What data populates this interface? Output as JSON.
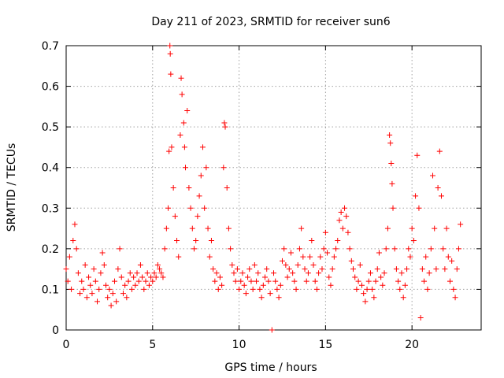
{
  "chart_data": {
    "type": "scatter",
    "title": "Day 211 of 2023, SRMTID for receiver sun6",
    "xlabel": "GPS time / hours",
    "ylabel": "SRMTID / TECUs",
    "xlim": [
      0,
      24
    ],
    "ylim": [
      0,
      0.7
    ],
    "xticks": [
      0,
      5,
      10,
      15,
      20
    ],
    "xtick_labels": [
      "0",
      "5",
      "10",
      "15",
      "20"
    ],
    "yticks": [
      0,
      0.1,
      0.2,
      0.3,
      0.4,
      0.5,
      0.6,
      0.7
    ],
    "ytick_labels": [
      "0",
      "0.1",
      "0.2",
      "0.3",
      "0.4",
      "0.5",
      "0.6",
      "0.7"
    ],
    "grid": true,
    "marker": "+",
    "color": "#ff0000",
    "series": [
      {
        "name": "SRMTID",
        "points": [
          [
            0.0,
            0.15
          ],
          [
            0.1,
            0.12
          ],
          [
            0.2,
            0.18
          ],
          [
            0.3,
            0.1
          ],
          [
            0.4,
            0.22
          ],
          [
            0.5,
            0.26
          ],
          [
            0.6,
            0.2
          ],
          [
            0.7,
            0.14
          ],
          [
            0.8,
            0.09
          ],
          [
            0.9,
            0.12
          ],
          [
            1.0,
            0.1
          ],
          [
            1.1,
            0.16
          ],
          [
            1.2,
            0.08
          ],
          [
            1.3,
            0.13
          ],
          [
            1.4,
            0.11
          ],
          [
            1.5,
            0.09
          ],
          [
            1.6,
            0.15
          ],
          [
            1.7,
            0.12
          ],
          [
            1.8,
            0.07
          ],
          [
            1.9,
            0.1
          ],
          [
            2.0,
            0.14
          ],
          [
            2.1,
            0.19
          ],
          [
            2.2,
            0.16
          ],
          [
            2.3,
            0.11
          ],
          [
            2.4,
            0.08
          ],
          [
            2.5,
            0.1
          ],
          [
            2.6,
            0.06
          ],
          [
            2.7,
            0.09
          ],
          [
            2.8,
            0.12
          ],
          [
            2.9,
            0.07
          ],
          [
            3.0,
            0.15
          ],
          [
            3.1,
            0.2
          ],
          [
            3.2,
            0.13
          ],
          [
            3.3,
            0.09
          ],
          [
            3.4,
            0.11
          ],
          [
            3.5,
            0.08
          ],
          [
            3.6,
            0.12
          ],
          [
            3.7,
            0.14
          ],
          [
            3.8,
            0.1
          ],
          [
            3.9,
            0.13
          ],
          [
            4.0,
            0.11
          ],
          [
            4.1,
            0.14
          ],
          [
            4.2,
            0.12
          ],
          [
            4.3,
            0.16
          ],
          [
            4.4,
            0.13
          ],
          [
            4.5,
            0.1
          ],
          [
            4.6,
            0.12
          ],
          [
            4.7,
            0.14
          ],
          [
            4.8,
            0.11
          ],
          [
            4.9,
            0.13
          ],
          [
            5.0,
            0.12
          ],
          [
            5.1,
            0.14
          ],
          [
            5.2,
            0.13
          ],
          [
            5.3,
            0.16
          ],
          [
            5.4,
            0.15
          ],
          [
            5.5,
            0.14
          ],
          [
            5.6,
            0.13
          ],
          [
            5.7,
            0.2
          ],
          [
            5.8,
            0.25
          ],
          [
            5.9,
            0.3
          ],
          [
            5.95,
            0.44
          ],
          [
            6.0,
            0.7
          ],
          [
            6.02,
            0.68
          ],
          [
            6.05,
            0.63
          ],
          [
            6.1,
            0.45
          ],
          [
            6.2,
            0.35
          ],
          [
            6.3,
            0.28
          ],
          [
            6.4,
            0.22
          ],
          [
            6.5,
            0.18
          ],
          [
            6.6,
            0.48
          ],
          [
            6.65,
            0.62
          ],
          [
            6.7,
            0.58
          ],
          [
            6.8,
            0.51
          ],
          [
            6.85,
            0.45
          ],
          [
            6.9,
            0.4
          ],
          [
            7.0,
            0.54
          ],
          [
            7.1,
            0.35
          ],
          [
            7.2,
            0.3
          ],
          [
            7.3,
            0.25
          ],
          [
            7.4,
            0.2
          ],
          [
            7.5,
            0.22
          ],
          [
            7.6,
            0.28
          ],
          [
            7.7,
            0.33
          ],
          [
            7.8,
            0.38
          ],
          [
            7.9,
            0.45
          ],
          [
            8.0,
            0.3
          ],
          [
            8.1,
            0.4
          ],
          [
            8.2,
            0.25
          ],
          [
            8.3,
            0.18
          ],
          [
            8.4,
            0.22
          ],
          [
            8.5,
            0.15
          ],
          [
            8.6,
            0.12
          ],
          [
            8.7,
            0.14
          ],
          [
            8.8,
            0.1
          ],
          [
            8.9,
            0.13
          ],
          [
            9.0,
            0.11
          ],
          [
            9.1,
            0.4
          ],
          [
            9.15,
            0.51
          ],
          [
            9.2,
            0.5
          ],
          [
            9.3,
            0.35
          ],
          [
            9.4,
            0.25
          ],
          [
            9.5,
            0.2
          ],
          [
            9.6,
            0.16
          ],
          [
            9.7,
            0.14
          ],
          [
            9.8,
            0.12
          ],
          [
            9.9,
            0.15
          ],
          [
            10.0,
            0.1
          ],
          [
            10.1,
            0.12
          ],
          [
            10.2,
            0.14
          ],
          [
            10.3,
            0.11
          ],
          [
            10.4,
            0.09
          ],
          [
            10.5,
            0.13
          ],
          [
            10.6,
            0.15
          ],
          [
            10.7,
            0.12
          ],
          [
            10.8,
            0.1
          ],
          [
            10.9,
            0.16
          ],
          [
            11.0,
            0.12
          ],
          [
            11.1,
            0.14
          ],
          [
            11.2,
            0.1
          ],
          [
            11.3,
            0.08
          ],
          [
            11.4,
            0.11
          ],
          [
            11.5,
            0.13
          ],
          [
            11.6,
            0.15
          ],
          [
            11.7,
            0.12
          ],
          [
            11.8,
            0.09
          ],
          [
            11.9,
            0.0
          ],
          [
            12.0,
            0.14
          ],
          [
            12.1,
            0.12
          ],
          [
            12.2,
            0.1
          ],
          [
            12.3,
            0.08
          ],
          [
            12.4,
            0.11
          ],
          [
            12.5,
            0.17
          ],
          [
            12.6,
            0.2
          ],
          [
            12.7,
            0.16
          ],
          [
            12.8,
            0.13
          ],
          [
            12.9,
            0.15
          ],
          [
            13.0,
            0.19
          ],
          [
            13.1,
            0.14
          ],
          [
            13.2,
            0.12
          ],
          [
            13.3,
            0.1
          ],
          [
            13.4,
            0.16
          ],
          [
            13.5,
            0.2
          ],
          [
            13.6,
            0.25
          ],
          [
            13.7,
            0.18
          ],
          [
            13.8,
            0.15
          ],
          [
            13.9,
            0.12
          ],
          [
            14.0,
            0.14
          ],
          [
            14.1,
            0.18
          ],
          [
            14.2,
            0.22
          ],
          [
            14.3,
            0.16
          ],
          [
            14.4,
            0.12
          ],
          [
            14.5,
            0.1
          ],
          [
            14.6,
            0.14
          ],
          [
            14.7,
            0.18
          ],
          [
            14.8,
            0.15
          ],
          [
            14.9,
            0.2
          ],
          [
            15.0,
            0.24
          ],
          [
            15.1,
            0.19
          ],
          [
            15.2,
            0.13
          ],
          [
            15.3,
            0.11
          ],
          [
            15.4,
            0.15
          ],
          [
            15.5,
            0.18
          ],
          [
            15.6,
            0.2
          ],
          [
            15.7,
            0.22
          ],
          [
            15.8,
            0.27
          ],
          [
            15.9,
            0.29
          ],
          [
            16.0,
            0.25
          ],
          [
            16.1,
            0.3
          ],
          [
            16.2,
            0.28
          ],
          [
            16.3,
            0.24
          ],
          [
            16.4,
            0.2
          ],
          [
            16.5,
            0.17
          ],
          [
            16.6,
            0.15
          ],
          [
            16.7,
            0.13
          ],
          [
            16.8,
            0.1
          ],
          [
            16.9,
            0.12
          ],
          [
            17.0,
            0.16
          ],
          [
            17.1,
            0.11
          ],
          [
            17.2,
            0.09
          ],
          [
            17.3,
            0.07
          ],
          [
            17.4,
            0.1
          ],
          [
            17.5,
            0.12
          ],
          [
            17.6,
            0.14
          ],
          [
            17.7,
            0.1
          ],
          [
            17.8,
            0.08
          ],
          [
            17.9,
            0.12
          ],
          [
            18.0,
            0.15
          ],
          [
            18.1,
            0.19
          ],
          [
            18.2,
            0.13
          ],
          [
            18.3,
            0.11
          ],
          [
            18.4,
            0.14
          ],
          [
            18.5,
            0.2
          ],
          [
            18.6,
            0.25
          ],
          [
            18.7,
            0.48
          ],
          [
            18.75,
            0.46
          ],
          [
            18.8,
            0.41
          ],
          [
            18.85,
            0.36
          ],
          [
            18.9,
            0.3
          ],
          [
            19.0,
            0.2
          ],
          [
            19.1,
            0.15
          ],
          [
            19.2,
            0.12
          ],
          [
            19.3,
            0.1
          ],
          [
            19.4,
            0.14
          ],
          [
            19.5,
            0.08
          ],
          [
            19.6,
            0.11
          ],
          [
            19.7,
            0.15
          ],
          [
            19.8,
            0.2
          ],
          [
            19.9,
            0.18
          ],
          [
            20.0,
            0.25
          ],
          [
            20.1,
            0.22
          ],
          [
            20.2,
            0.33
          ],
          [
            20.3,
            0.43
          ],
          [
            20.4,
            0.3
          ],
          [
            20.5,
            0.03
          ],
          [
            20.6,
            0.15
          ],
          [
            20.7,
            0.12
          ],
          [
            20.8,
            0.18
          ],
          [
            20.9,
            0.1
          ],
          [
            21.0,
            0.14
          ],
          [
            21.1,
            0.2
          ],
          [
            21.2,
            0.38
          ],
          [
            21.3,
            0.25
          ],
          [
            21.4,
            0.15
          ],
          [
            21.5,
            0.35
          ],
          [
            21.6,
            0.44
          ],
          [
            21.7,
            0.33
          ],
          [
            21.8,
            0.2
          ],
          [
            21.9,
            0.15
          ],
          [
            22.0,
            0.25
          ],
          [
            22.1,
            0.18
          ],
          [
            22.2,
            0.12
          ],
          [
            22.3,
            0.17
          ],
          [
            22.4,
            0.1
          ],
          [
            22.5,
            0.08
          ],
          [
            22.6,
            0.15
          ],
          [
            22.7,
            0.2
          ],
          [
            22.8,
            0.26
          ]
        ]
      }
    ]
  }
}
